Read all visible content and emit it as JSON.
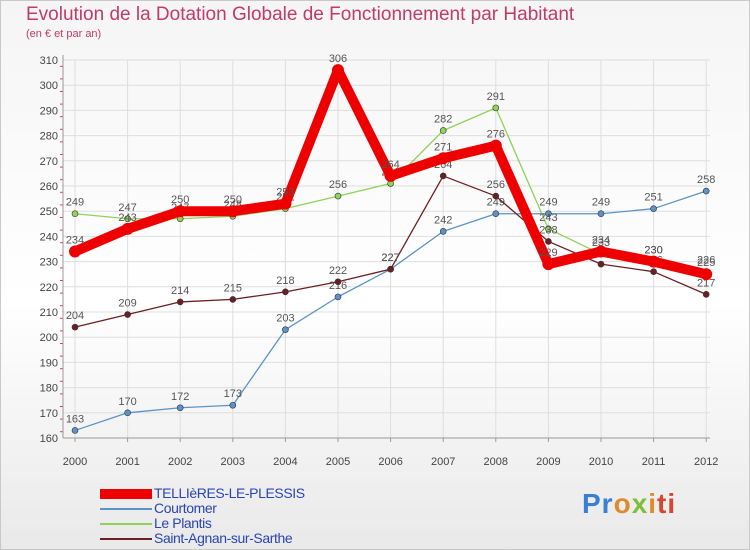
{
  "header": {
    "title": "Evolution de la Dotation Globale de Fonctionnement par Habitant",
    "subtitle": "(en € et par an)"
  },
  "logo": {
    "text": "Proxiti"
  },
  "chart_data": {
    "type": "line",
    "x": [
      "2000",
      "2001",
      "2002",
      "2003",
      "2004",
      "2005",
      "2006",
      "2007",
      "2008",
      "2009",
      "2010",
      "2011",
      "2012"
    ],
    "ylim": [
      160,
      310
    ],
    "yticks": [
      160,
      170,
      180,
      190,
      200,
      210,
      220,
      230,
      240,
      250,
      260,
      270,
      280,
      290,
      300,
      310
    ],
    "grid": true,
    "legend_position": "bottom-left",
    "series": [
      {
        "name": "Courtomer",
        "color": "#5b93c8",
        "values": [
          163,
          170,
          172,
          173,
          203,
          216,
          227,
          242,
          249,
          249,
          249,
          251,
          258
        ]
      },
      {
        "name": "Le Plantis",
        "color": "#8fd35a",
        "values": [
          249,
          247,
          247,
          248,
          251,
          256,
          261,
          282,
          291,
          243,
          233,
          230,
          226
        ]
      },
      {
        "name": "Saint-Agnan-sur-Sarthe",
        "color": "#6b1f24",
        "values": [
          204,
          209,
          214,
          215,
          218,
          222,
          227,
          264,
          256,
          238,
          229,
          226,
          217
        ]
      },
      {
        "name": "TELLIèRES-LE-PLESSIS",
        "color": "#ee0000",
        "values": [
          234,
          243,
          250,
          250,
          253,
          306,
          264,
          271,
          276,
          229,
          234,
          230,
          225
        ]
      }
    ],
    "legend_order": [
      "TELLIèRES-LE-PLESSIS",
      "Courtomer",
      "Le Plantis",
      "Saint-Agnan-sur-Sarthe"
    ]
  }
}
